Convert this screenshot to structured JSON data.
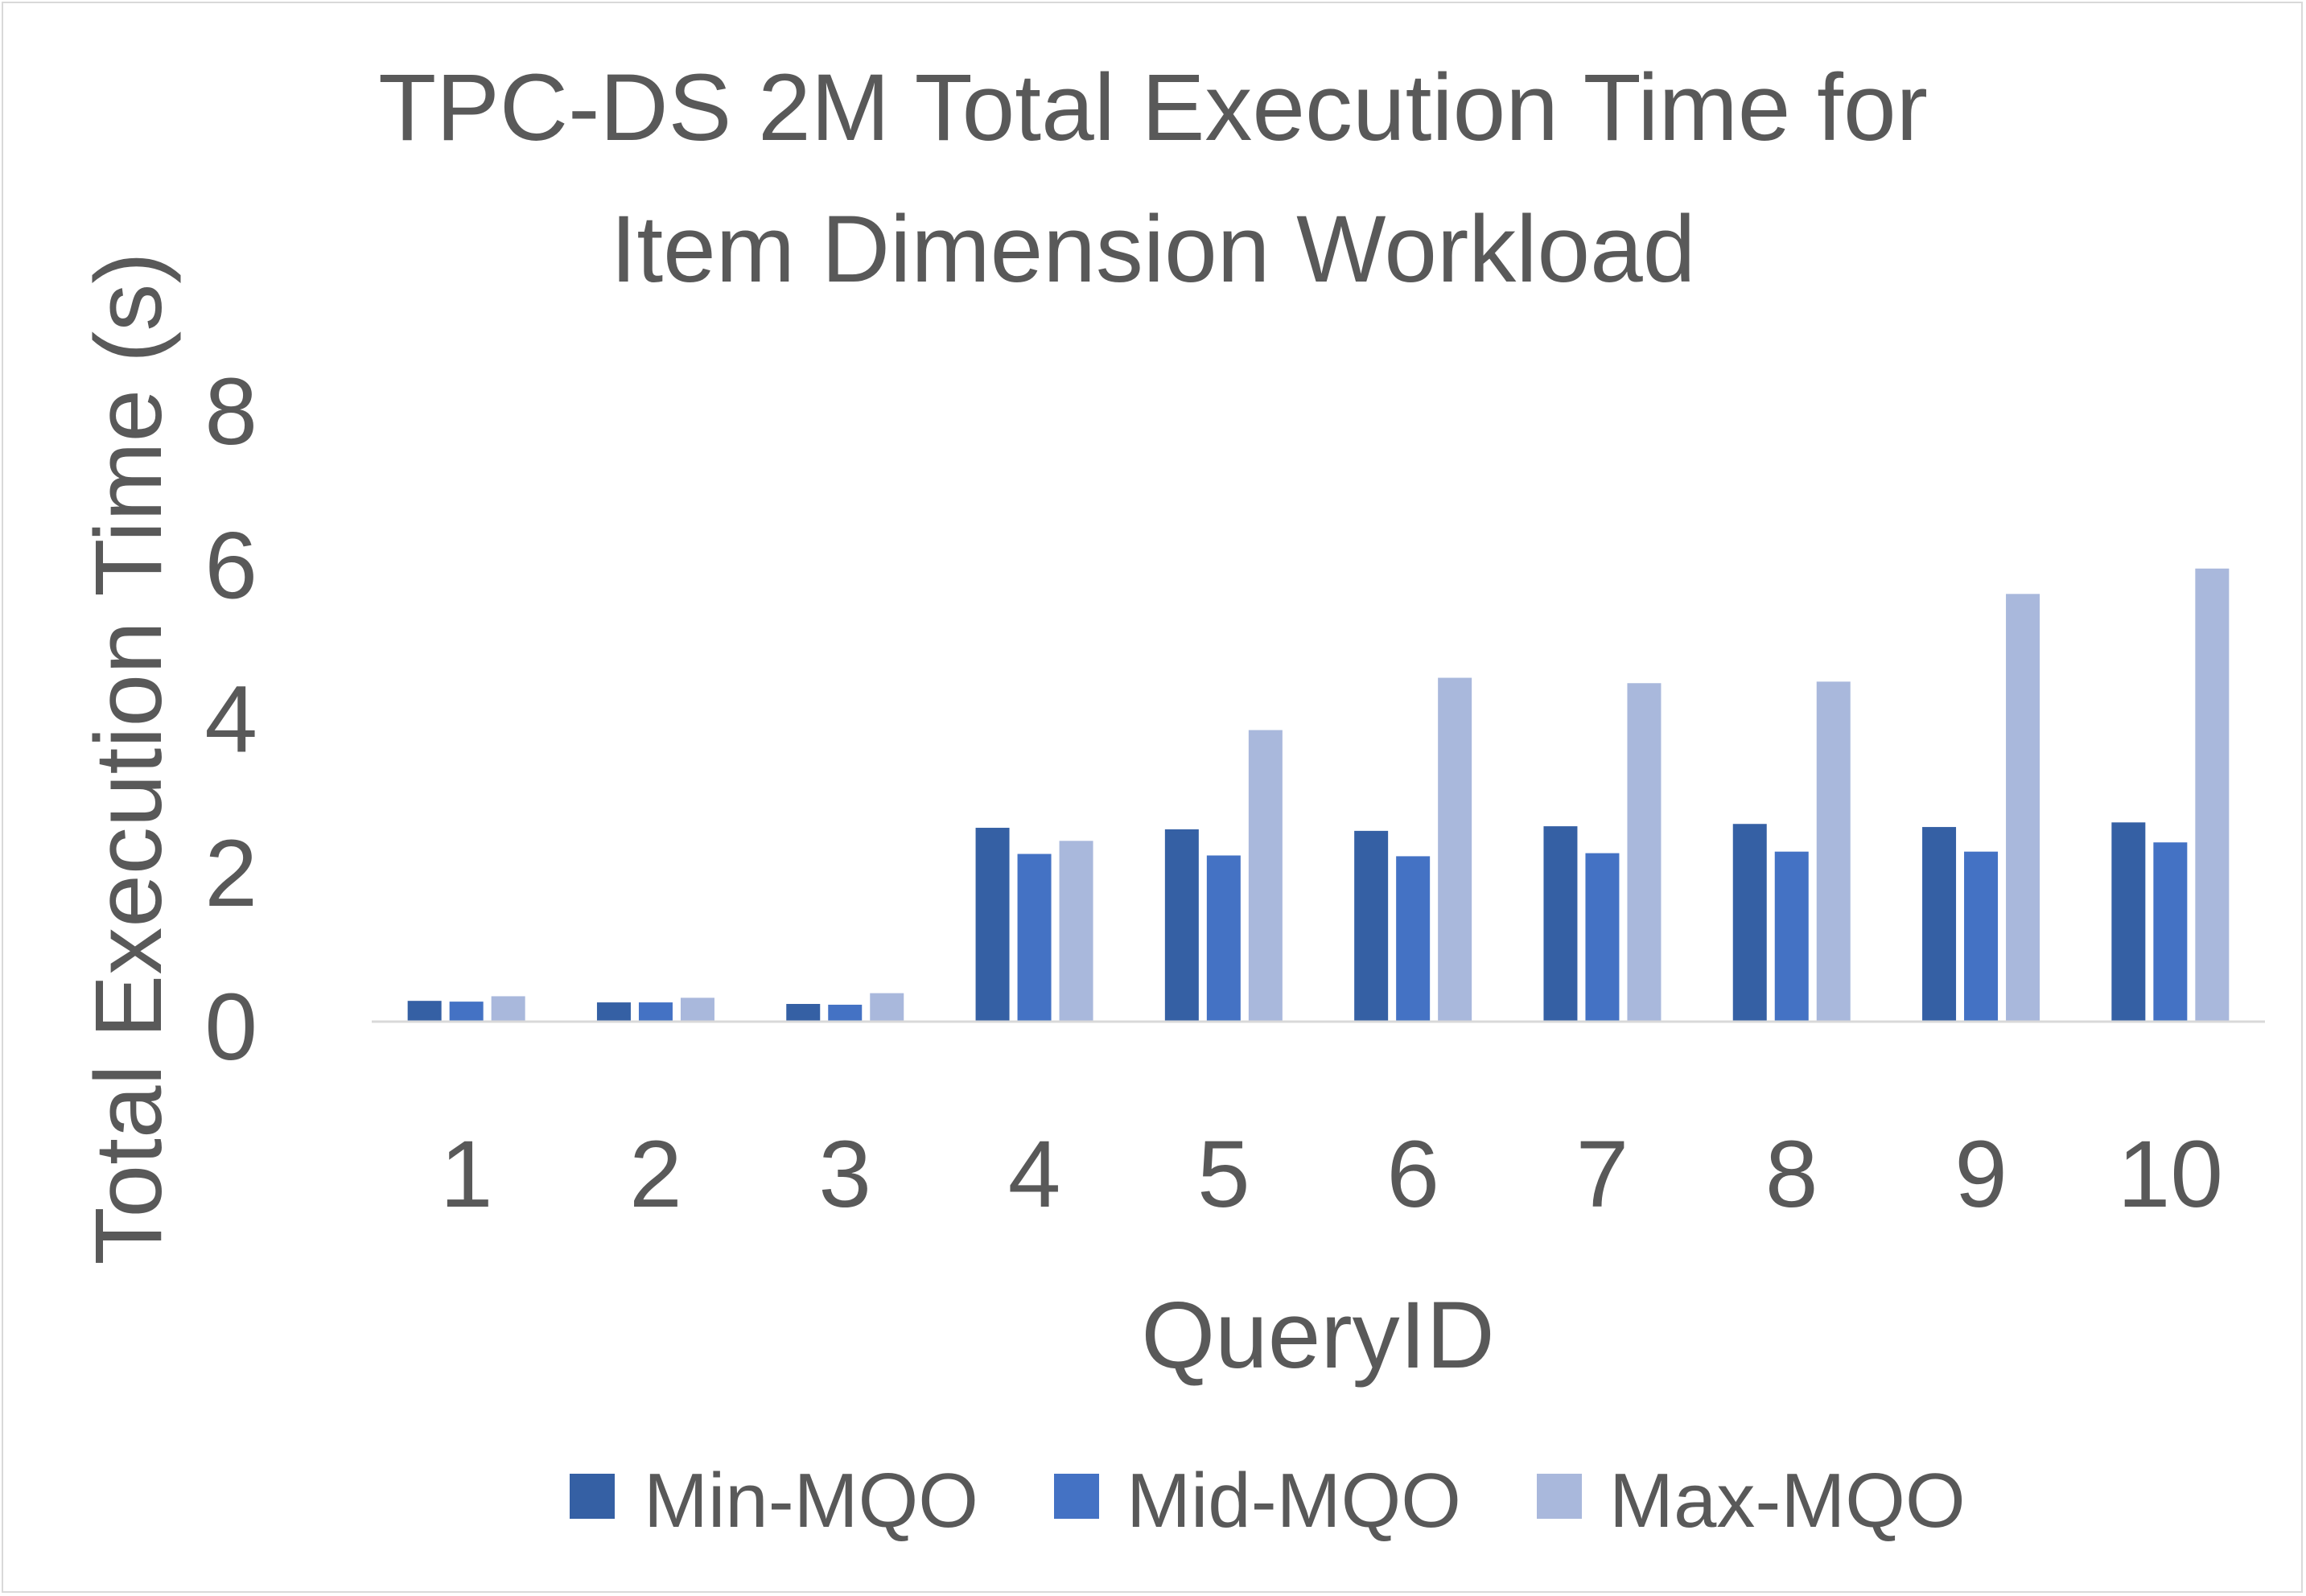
{
  "chart_data": {
    "type": "bar",
    "title_lines": [
      "TPC-DS 2M Total Execution Time for",
      "Item Dimension Workload"
    ],
    "xlabel": "QueryID",
    "ylabel": "Total Execution Time (s)",
    "ylim": [
      0,
      8
    ],
    "yticks": [
      0,
      2,
      4,
      6,
      8
    ],
    "grid": false,
    "legend_position": "bottom",
    "categories": [
      "1",
      "2",
      "3",
      "4",
      "5",
      "6",
      "7",
      "8",
      "9",
      "10"
    ],
    "series": [
      {
        "name": "Min-MQO",
        "color": "#3560a4",
        "values": [
          0.27,
          0.25,
          0.23,
          2.52,
          2.5,
          2.48,
          2.54,
          2.57,
          2.53,
          2.59
        ]
      },
      {
        "name": "Mid-MQO",
        "color": "#4472c4",
        "values": [
          0.26,
          0.25,
          0.22,
          2.18,
          2.16,
          2.15,
          2.19,
          2.21,
          2.21,
          2.33
        ]
      },
      {
        "name": "Max-MQO",
        "color": "#a9b8dc",
        "values": [
          0.33,
          0.31,
          0.37,
          2.35,
          3.79,
          4.47,
          4.4,
          4.42,
          5.56,
          5.89
        ]
      }
    ]
  }
}
